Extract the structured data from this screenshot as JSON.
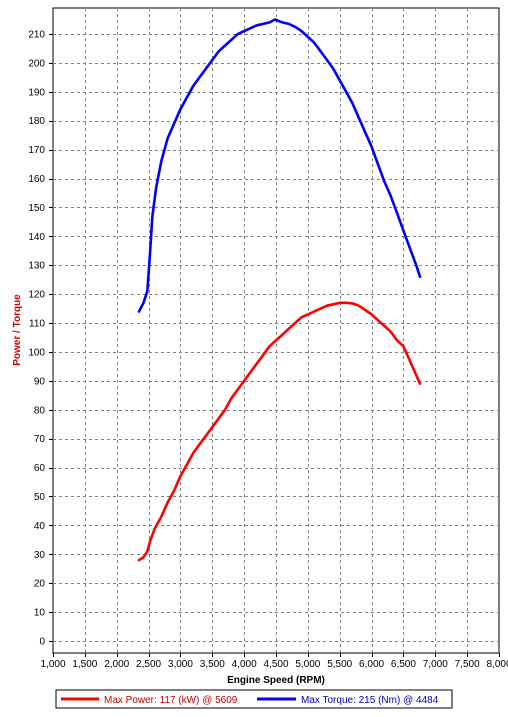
{
  "chart_data": {
    "type": "line",
    "title": "",
    "xlabel": "Engine Speed (RPM)",
    "ylabel": "Power / Torque",
    "xlim": [
      1000,
      8000
    ],
    "ylim": [
      0,
      215
    ],
    "x_ticks": [
      1000,
      1500,
      2000,
      2500,
      3000,
      3500,
      4000,
      4500,
      5000,
      5500,
      6000,
      6500,
      7000,
      7500,
      8000
    ],
    "x_tick_labels": [
      "1,000",
      "1,500",
      "2,000",
      "2,500",
      "3,000",
      "3,500",
      "4,000",
      "4,500",
      "5,000",
      "5,500",
      "6,000",
      "6,500",
      "7,000",
      "7,500",
      "8,000"
    ],
    "y_ticks": [
      0,
      10,
      20,
      30,
      40,
      50,
      60,
      70,
      80,
      90,
      100,
      110,
      120,
      130,
      140,
      150,
      160,
      170,
      180,
      190,
      200,
      210
    ],
    "y_tick_labels": [
      "0",
      "10",
      "20",
      "30",
      "40",
      "50",
      "60",
      "70",
      "80",
      "90",
      "100",
      "110",
      "120",
      "130",
      "140",
      "150",
      "160",
      "170",
      "180",
      "190",
      "200",
      "210"
    ],
    "grid": true,
    "legend_position": "bottom",
    "colors": {
      "power": "#ff0000",
      "torque": "#0000ff",
      "ylabel": "#cc0000"
    },
    "series": [
      {
        "name": "Max Power: 117 (kW) @ 5609",
        "color": "#ff0000",
        "points": [
          [
            2350,
            28
          ],
          [
            2420,
            29
          ],
          [
            2480,
            31
          ],
          [
            2530,
            35
          ],
          [
            2600,
            39
          ],
          [
            2700,
            43
          ],
          [
            2800,
            48
          ],
          [
            2900,
            52
          ],
          [
            3000,
            57
          ],
          [
            3100,
            61
          ],
          [
            3200,
            65
          ],
          [
            3300,
            68
          ],
          [
            3400,
            71
          ],
          [
            3500,
            74
          ],
          [
            3600,
            77
          ],
          [
            3700,
            80
          ],
          [
            3800,
            84
          ],
          [
            3900,
            87
          ],
          [
            4000,
            90
          ],
          [
            4100,
            93
          ],
          [
            4200,
            96
          ],
          [
            4300,
            99
          ],
          [
            4400,
            102
          ],
          [
            4500,
            104
          ],
          [
            4600,
            106
          ],
          [
            4700,
            108
          ],
          [
            4800,
            110
          ],
          [
            4900,
            112
          ],
          [
            5000,
            113
          ],
          [
            5100,
            114
          ],
          [
            5200,
            115
          ],
          [
            5300,
            116
          ],
          [
            5400,
            116.5
          ],
          [
            5500,
            117
          ],
          [
            5609,
            117
          ],
          [
            5700,
            116.8
          ],
          [
            5800,
            116
          ],
          [
            5900,
            114.5
          ],
          [
            6000,
            113
          ],
          [
            6100,
            111
          ],
          [
            6200,
            109
          ],
          [
            6300,
            107
          ],
          [
            6400,
            104
          ],
          [
            6500,
            102
          ],
          [
            6600,
            97
          ],
          [
            6700,
            92
          ],
          [
            6760,
            89
          ]
        ]
      },
      {
        "name": "Max Torque: 215 (Nm) @ 4484",
        "color": "#0000ff",
        "points": [
          [
            2350,
            114
          ],
          [
            2420,
            117
          ],
          [
            2480,
            121
          ],
          [
            2520,
            133
          ],
          [
            2560,
            147
          ],
          [
            2620,
            157
          ],
          [
            2700,
            166
          ],
          [
            2800,
            174
          ],
          [
            2900,
            179
          ],
          [
            3000,
            184
          ],
          [
            3100,
            188
          ],
          [
            3200,
            192
          ],
          [
            3300,
            195
          ],
          [
            3400,
            198
          ],
          [
            3500,
            201
          ],
          [
            3600,
            204
          ],
          [
            3700,
            206
          ],
          [
            3800,
            208
          ],
          [
            3900,
            210
          ],
          [
            4000,
            211
          ],
          [
            4100,
            212
          ],
          [
            4200,
            213
          ],
          [
            4300,
            213.5
          ],
          [
            4400,
            214
          ],
          [
            4484,
            215
          ],
          [
            4600,
            214
          ],
          [
            4700,
            213.5
          ],
          [
            4800,
            212.5
          ],
          [
            4900,
            211
          ],
          [
            5000,
            209
          ],
          [
            5100,
            207
          ],
          [
            5200,
            204
          ],
          [
            5300,
            201
          ],
          [
            5400,
            198
          ],
          [
            5500,
            194
          ],
          [
            5600,
            190
          ],
          [
            5700,
            186
          ],
          [
            5800,
            181
          ],
          [
            5900,
            176
          ],
          [
            6000,
            171
          ],
          [
            6100,
            165
          ],
          [
            6200,
            159
          ],
          [
            6300,
            154
          ],
          [
            6400,
            148
          ],
          [
            6500,
            142
          ],
          [
            6600,
            136
          ],
          [
            6700,
            130
          ],
          [
            6760,
            126
          ]
        ]
      }
    ]
  }
}
